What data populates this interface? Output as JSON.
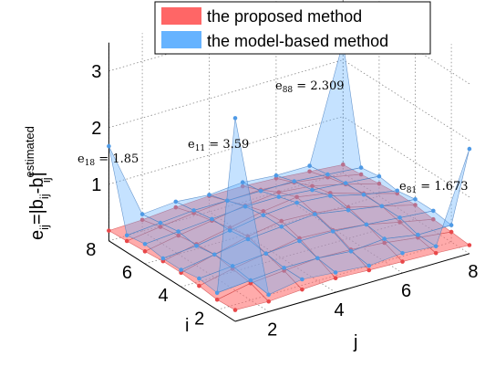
{
  "chart_data": {
    "type": "surface3d",
    "xlabel": "j",
    "ylabel": "i",
    "zlabel": "e_ij=|b_ij-b_ij^estimated|",
    "zlabel_parts": {
      "main": "e",
      "sub1": "ij",
      "mid": "=|b",
      "sub2": "ij",
      "dash": "-b",
      "sup": "estimated",
      "sub3": "ij",
      "tail": "|"
    },
    "x_ticks": [
      "2",
      "4",
      "6",
      "8"
    ],
    "y_ticks": [
      "2",
      "4",
      "6",
      "8"
    ],
    "z_ticks": [
      "1",
      "2",
      "3"
    ],
    "xlim": [
      1,
      8
    ],
    "ylim": [
      1,
      8
    ],
    "zlim": [
      0,
      3.5
    ],
    "grid": true,
    "legend_position": "top",
    "series": [
      {
        "name": "the proposed method",
        "color": "#ff6666",
        "values": [
          [
            0.2,
            0.18,
            0.22,
            0.25,
            0.22,
            0.2,
            0.18,
            0.15
          ],
          [
            0.18,
            0.3,
            0.35,
            0.4,
            0.38,
            0.33,
            0.25,
            0.18
          ],
          [
            0.22,
            0.35,
            0.45,
            0.55,
            0.52,
            0.45,
            0.32,
            0.2
          ],
          [
            0.25,
            0.4,
            0.55,
            0.65,
            0.62,
            0.55,
            0.4,
            0.25
          ],
          [
            0.25,
            0.38,
            0.5,
            0.62,
            0.7,
            0.6,
            0.42,
            0.25
          ],
          [
            0.22,
            0.33,
            0.42,
            0.52,
            0.58,
            0.52,
            0.38,
            0.22
          ],
          [
            0.2,
            0.28,
            0.35,
            0.4,
            0.42,
            0.38,
            0.3,
            0.18
          ],
          [
            0.18,
            0.2,
            0.25,
            0.28,
            0.28,
            0.25,
            0.2,
            0.15
          ]
        ]
      },
      {
        "name": "the model-based method",
        "color": "#66b3ff",
        "values": [
          [
            3.59,
            0.3,
            0.4,
            0.35,
            0.3,
            0.35,
            0.3,
            1.85
          ],
          [
            0.3,
            0.35,
            0.4,
            0.4,
            0.35,
            0.4,
            0.3,
            0.3
          ],
          [
            0.35,
            0.4,
            0.45,
            0.5,
            0.5,
            0.45,
            0.4,
            0.35
          ],
          [
            0.3,
            0.4,
            0.5,
            0.55,
            0.6,
            0.5,
            0.4,
            0.35
          ],
          [
            0.3,
            0.35,
            0.45,
            0.55,
            0.6,
            0.55,
            0.4,
            0.3
          ],
          [
            0.35,
            0.4,
            0.45,
            0.5,
            0.5,
            0.45,
            0.4,
            0.35
          ],
          [
            0.3,
            0.35,
            0.4,
            0.4,
            0.4,
            0.4,
            0.35,
            0.3
          ],
          [
            1.673,
            0.3,
            0.35,
            0.3,
            0.35,
            0.3,
            0.3,
            2.309
          ]
        ]
      }
    ],
    "annotations": [
      {
        "base": "e",
        "sub": "18",
        "value": "= 1.85",
        "i": 1,
        "j": 8
      },
      {
        "base": "e",
        "sub": "11",
        "value": "= 3.59",
        "i": 1,
        "j": 1
      },
      {
        "base": "e",
        "sub": "88",
        "value": "= 2.309",
        "i": 8,
        "j": 8
      },
      {
        "base": "e",
        "sub": "81",
        "value": "= 1.673",
        "i": 8,
        "j": 1
      }
    ]
  }
}
